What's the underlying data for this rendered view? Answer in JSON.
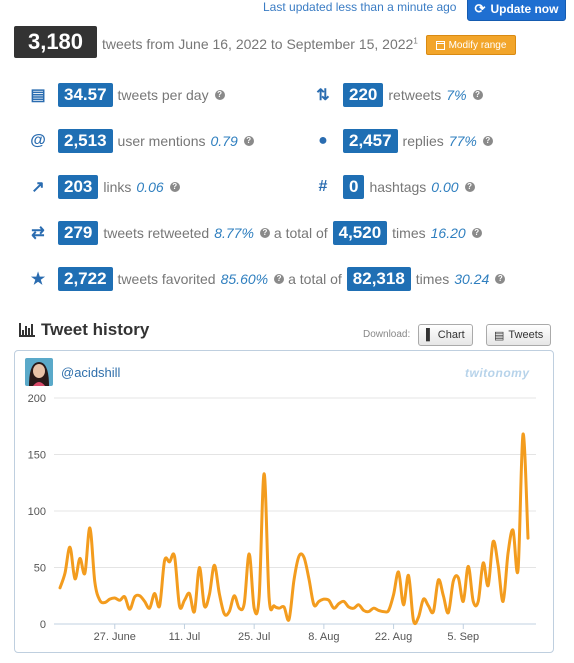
{
  "header": {
    "last_updated": "Last updated less than a minute ago",
    "update_button": "Update now",
    "total_tweets": "3,180",
    "range_text": "tweets from June 16, 2022 to September 15, 2022",
    "range_footnote": "1",
    "modify_button": "Modify range"
  },
  "stats": {
    "per_day": {
      "value": "34.57",
      "label": "tweets per day"
    },
    "retweets": {
      "value": "220",
      "label": "retweets",
      "pct": "7%"
    },
    "mentions": {
      "value": "2,513",
      "label": "user mentions",
      "pct": "0.79"
    },
    "replies": {
      "value": "2,457",
      "label": "replies",
      "pct": "77%"
    },
    "links": {
      "value": "203",
      "label": "links",
      "pct": "0.06"
    },
    "hashtags": {
      "value": "0",
      "label": "hashtags",
      "pct": "0.00"
    },
    "retweeted": {
      "value": "279",
      "label": "tweets retweeted",
      "pct": "8.77%",
      "mid": "a total of",
      "total": "4,520",
      "times": "times",
      "avg": "16.20"
    },
    "favorited": {
      "value": "2,722",
      "label": "tweets favorited",
      "pct": "85.60%",
      "mid": "a total of",
      "total": "82,318",
      "times": "times",
      "avg": "30.24"
    }
  },
  "history": {
    "title": "Tweet history",
    "download_label": "Download:",
    "chart_button": "Chart",
    "tweets_button": "Tweets",
    "handle": "@acidshill",
    "logo": "twitonomy"
  },
  "colors": {
    "accent": "#1f6fb4",
    "line": "#f39c1e",
    "modify": "#f2a52a"
  },
  "chart_data": {
    "type": "line",
    "ylim": [
      0,
      200
    ],
    "yticks": [
      0,
      50,
      100,
      150,
      200
    ],
    "xticks": [
      {
        "label": "27. June",
        "day": 11
      },
      {
        "label": "11. Jul",
        "day": 25
      },
      {
        "label": "25. Jul",
        "day": 39
      },
      {
        "label": "8. Aug",
        "day": 53
      },
      {
        "label": "22. Aug",
        "day": 67
      },
      {
        "label": "5. Sep",
        "day": 81
      }
    ],
    "series": [
      {
        "values": [
          32,
          45,
          68,
          40,
          58,
          45,
          85,
          37,
          21,
          19,
          22,
          23,
          21,
          24,
          13,
          24,
          25,
          20,
          14,
          27,
          16,
          56,
          55,
          60,
          16,
          21,
          27,
          11,
          50,
          16,
          26,
          52,
          27,
          9,
          11,
          25,
          14,
          18,
          62,
          14,
          24,
          133,
          23,
          16,
          14,
          15,
          4,
          39,
          60,
          59,
          40,
          17,
          20,
          22,
          21,
          14,
          18,
          20,
          15,
          14,
          17,
          12,
          11,
          14,
          12,
          11,
          12,
          26,
          46,
          17,
          43,
          3,
          6,
          22,
          16,
          11,
          39,
          25,
          10,
          38,
          41,
          20,
          51,
          20,
          20,
          54,
          34,
          73,
          52,
          20,
          63,
          83,
          48,
          168,
          76
        ]
      }
    ]
  }
}
